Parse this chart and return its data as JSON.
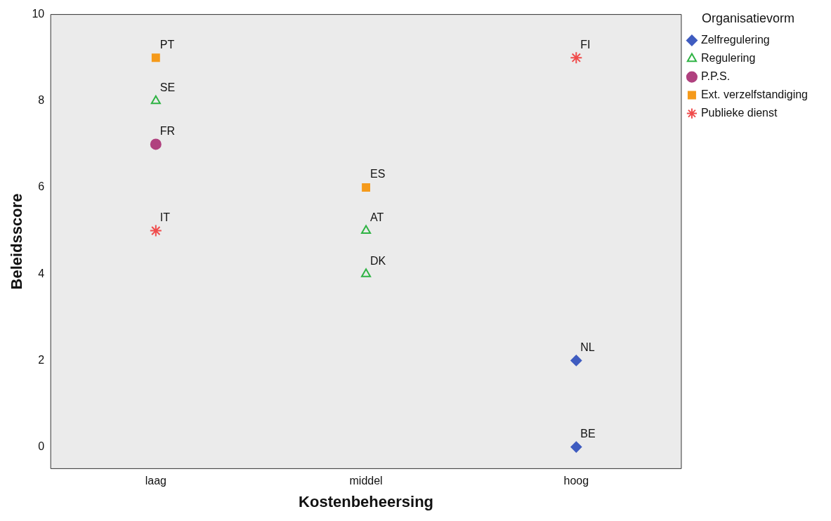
{
  "chart_data": {
    "type": "scatter",
    "xlabel": "Kostenbeheersing",
    "ylabel": "Beleidsscore",
    "legend_title": "Organisatievorm",
    "legend": "top right",
    "grid": false,
    "categories": [
      "laag",
      "middel",
      "hoog"
    ],
    "ylim": [
      -0.5,
      10
    ],
    "yticks": [
      0,
      2,
      4,
      6,
      8,
      10
    ],
    "series": [
      {
        "name": "Zelfregulering",
        "color": "#3f5cc0",
        "marker": "diamond",
        "x": [
          "hoog",
          "hoog"
        ],
        "values": [
          2,
          0
        ]
      },
      {
        "name": "Regulering",
        "color": "#2fb344",
        "marker": "triangle",
        "x": [
          "laag",
          "middel",
          "middel"
        ],
        "values": [
          8,
          5,
          4
        ]
      },
      {
        "name": "P.P.S.",
        "color": "#b0417f",
        "marker": "circle",
        "x": [
          "laag"
        ],
        "values": [
          7
        ]
      },
      {
        "name": "Ext. verzelfstandiging",
        "color": "#f59a1b",
        "marker": "square",
        "x": [
          "laag",
          "middel"
        ],
        "values": [
          9,
          6
        ]
      },
      {
        "name": "Publieke dienst",
        "color": "#f04b4b",
        "marker": "cross",
        "x": [
          "laag",
          "hoog"
        ],
        "values": [
          5,
          9
        ]
      }
    ],
    "annotations": [
      {
        "text": "PT",
        "x": "laag",
        "y": 9
      },
      {
        "text": "SE",
        "x": "laag",
        "y": 8
      },
      {
        "text": "FR",
        "x": "laag",
        "y": 7
      },
      {
        "text": "IT",
        "x": "laag",
        "y": 5
      },
      {
        "text": "ES",
        "x": "middel",
        "y": 6
      },
      {
        "text": "AT",
        "x": "middel",
        "y": 5
      },
      {
        "text": "DK",
        "x": "middel",
        "y": 4
      },
      {
        "text": "FI",
        "x": "hoog",
        "y": 9
      },
      {
        "text": "NL",
        "x": "hoog",
        "y": 2
      },
      {
        "text": "BE",
        "x": "hoog",
        "y": 0
      }
    ]
  }
}
